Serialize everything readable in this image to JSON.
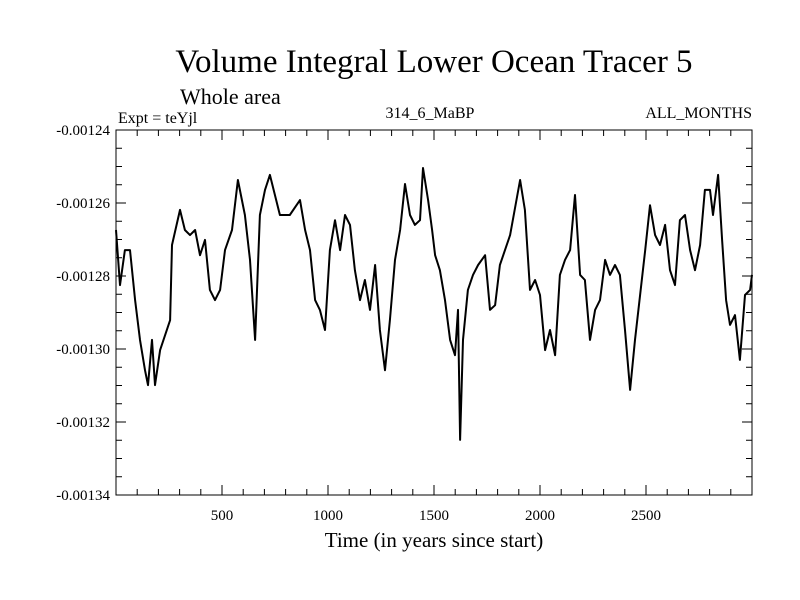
{
  "chart_data": {
    "type": "line",
    "title": "Volume Integral Lower Ocean Tracer 5",
    "subtitle": "Whole area",
    "annotations": {
      "left": "Expt = teYjl",
      "center": "314_6_MaBP",
      "right": "ALL_MONTHS"
    },
    "xlabel": "Time (in years since start)",
    "ylabel": "",
    "xlim": [
      0,
      3000
    ],
    "ylim": [
      -0.00134,
      -0.00124
    ],
    "x_ticks": [
      500,
      1000,
      1500,
      2000,
      2500
    ],
    "x_tick_labels": [
      "500",
      "1000",
      "1500",
      "2000",
      "2500"
    ],
    "x_minor_step": 100,
    "y_ticks": [
      -0.00124,
      -0.00126,
      -0.00128,
      -0.0013,
      -0.00132,
      -0.00134
    ],
    "y_tick_labels": [
      "-0.00124",
      "-0.00126",
      "-0.00128",
      "-0.00130",
      "-0.00132",
      "-0.00134"
    ],
    "y_minor_step": 5e-06,
    "grid": false,
    "line_color": "#000000",
    "series": [
      {
        "name": "Volume Integral Lower Ocean Tracer 5",
        "x": [
          0,
          19,
          42,
          66,
          90,
          113,
          137,
          151,
          170,
          184,
          208,
          255,
          264,
          302,
          325,
          349,
          373,
          396,
          420,
          443,
          467,
          491,
          514,
          547,
          575,
          608,
          632,
          656,
          679,
          703,
          726,
          773,
          820,
          868,
          892,
          915,
          939,
          962,
          986,
          1009,
          1033,
          1057,
          1080,
          1104,
          1127,
          1151,
          1174,
          1198,
          1222,
          1245,
          1269,
          1292,
          1316,
          1340,
          1363,
          1387,
          1410,
          1434,
          1448,
          1472,
          1491,
          1505,
          1528,
          1552,
          1576,
          1599,
          1613,
          1623,
          1637,
          1660,
          1684,
          1708,
          1741,
          1764,
          1788,
          1811,
          1859,
          1906,
          1929,
          1953,
          1977,
          2000,
          2024,
          2047,
          2071,
          2094,
          2118,
          2142,
          2165,
          2189,
          2212,
          2236,
          2260,
          2283,
          2307,
          2330,
          2354,
          2377,
          2401,
          2425,
          2448,
          2472,
          2496,
          2519,
          2543,
          2566,
          2590,
          2613,
          2637,
          2660,
          2684,
          2708,
          2731,
          2755,
          2778,
          2802,
          2816,
          2840,
          2859,
          2878,
          2896,
          2920,
          2943,
          2967,
          2991,
          3000
        ],
        "values": [
          -0.0012674,
          -0.0012825,
          -0.0012729,
          -0.0012729,
          -0.0012866,
          -0.0012975,
          -0.0013058,
          -0.0013099,
          -0.0012975,
          -0.0013099,
          -0.0013003,
          -0.0012921,
          -0.0012715,
          -0.0012619,
          -0.0012674,
          -0.0012688,
          -0.0012674,
          -0.0012743,
          -0.0012701,
          -0.0012838,
          -0.0012866,
          -0.0012838,
          -0.0012729,
          -0.0012674,
          -0.0012537,
          -0.0012633,
          -0.0012756,
          -0.0012975,
          -0.0012633,
          -0.0012564,
          -0.0012523,
          -0.0012633,
          -0.0012633,
          -0.0012592,
          -0.0012674,
          -0.0012729,
          -0.0012866,
          -0.0012893,
          -0.0012948,
          -0.0012729,
          -0.0012647,
          -0.0012729,
          -0.0012633,
          -0.001266,
          -0.0012784,
          -0.0012866,
          -0.0012811,
          -0.0012893,
          -0.001277,
          -0.0012948,
          -0.0013058,
          -0.0012921,
          -0.0012756,
          -0.0012674,
          -0.0012548,
          -0.0012633,
          -0.001266,
          -0.0012647,
          -0.0012504,
          -0.0012592,
          -0.0012674,
          -0.0012743,
          -0.0012784,
          -0.0012866,
          -0.0012975,
          -0.0013017,
          -0.0012893,
          -0.0013249,
          -0.0012975,
          -0.0012838,
          -0.0012797,
          -0.001277,
          -0.0012743,
          -0.0012893,
          -0.001288,
          -0.001277,
          -0.0012688,
          -0.0012537,
          -0.0012619,
          -0.0012838,
          -0.0012811,
          -0.0012852,
          -0.0013003,
          -0.0012948,
          -0.0013017,
          -0.0012797,
          -0.0012756,
          -0.0012729,
          -0.0012578,
          -0.0012797,
          -0.0012811,
          -0.0012975,
          -0.0012893,
          -0.0012866,
          -0.0012756,
          -0.0012797,
          -0.001277,
          -0.0012797,
          -0.0012948,
          -0.0013112,
          -0.0012975,
          -0.0012852,
          -0.0012729,
          -0.0012606,
          -0.0012688,
          -0.0012715,
          -0.001266,
          -0.0012784,
          -0.0012825,
          -0.0012647,
          -0.0012633,
          -0.0012729,
          -0.0012784,
          -0.0012715,
          -0.0012564,
          -0.0012564,
          -0.0012633,
          -0.0012523,
          -0.0012701,
          -0.0012866,
          -0.0012934,
          -0.0012907,
          -0.001303,
          -0.0012852,
          -0.0012838,
          -0.0012797
        ]
      }
    ]
  }
}
